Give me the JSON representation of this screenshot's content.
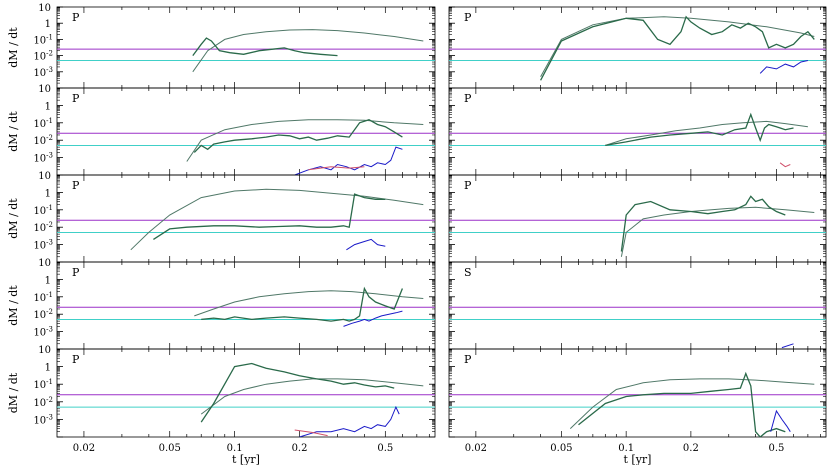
{
  "chart_data": {
    "type": "line",
    "layout": "5 rows x 2 columns",
    "xlabel": "t [yr]",
    "ylabel": "dM / dt",
    "x_scale": "log",
    "y_scale": "log",
    "xlim": [
      0.015,
      0.85
    ],
    "ylim": [
      0.0001,
      10
    ],
    "x_ticks": [
      {
        "value": 0.02,
        "label": "0.02"
      },
      {
        "value": 0.05,
        "label": "0.05"
      },
      {
        "value": 0.1,
        "label": "0.1"
      },
      {
        "value": 0.2,
        "label": "0.2"
      },
      {
        "value": 0.5,
        "label": "0.5"
      }
    ],
    "y_ticks": [
      {
        "value": 10,
        "label": "10"
      },
      {
        "value": 1,
        "label": "1"
      },
      {
        "value": 0.1,
        "label": "10-1"
      },
      {
        "value": 0.01,
        "label": "10-2"
      },
      {
        "value": 0.001,
        "label": "10-3"
      }
    ],
    "reference_lines": [
      {
        "y": 0.025,
        "color": "#9b30c8"
      },
      {
        "y": 0.005,
        "color": "#40d0c8"
      }
    ],
    "colors": {
      "smooth": "#507868",
      "detailed": "#2a6a4a",
      "low": "#1a1ac8",
      "red": "#d0506a"
    },
    "panels": [
      {
        "label": "P",
        "series": [
          {
            "kind": "smooth",
            "x": [
              0.064,
              0.075,
              0.09,
              0.11,
              0.14,
              0.18,
              0.23,
              0.3,
              0.4,
              0.55,
              0.75
            ],
            "y": [
              0.001,
              0.02,
              0.1,
              0.2,
              0.3,
              0.38,
              0.4,
              0.35,
              0.25,
              0.15,
              0.08
            ]
          },
          {
            "kind": "detailed",
            "x": [
              0.064,
              0.07,
              0.074,
              0.078,
              0.085,
              0.095,
              0.11,
              0.13,
              0.15,
              0.17,
              0.19,
              0.21,
              0.25,
              0.3
            ],
            "y": [
              0.01,
              0.05,
              0.12,
              0.08,
              0.02,
              0.015,
              0.012,
              0.02,
              0.025,
              0.03,
              0.02,
              0.015,
              0.012,
              0.01
            ]
          }
        ]
      },
      {
        "label": "P",
        "series": [
          {
            "kind": "smooth",
            "x": [
              0.04,
              0.05,
              0.07,
              0.1,
              0.15,
              0.2,
              0.3,
              0.45,
              0.65,
              0.75
            ],
            "y": [
              0.0005,
              0.1,
              0.8,
              2,
              2.5,
              2,
              1.2,
              0.6,
              0.25,
              0.15
            ]
          },
          {
            "kind": "detailed",
            "x": [
              0.04,
              0.05,
              0.07,
              0.1,
              0.12,
              0.14,
              0.16,
              0.18,
              0.19,
              0.2,
              0.22,
              0.25,
              0.28,
              0.31,
              0.34,
              0.37,
              0.4,
              0.43,
              0.46,
              0.5,
              0.55,
              0.6,
              0.65,
              0.7,
              0.75
            ],
            "y": [
              0.0003,
              0.08,
              0.6,
              2,
              1.5,
              0.1,
              0.05,
              0.3,
              2.5,
              1.2,
              0.5,
              0.2,
              0.3,
              0.8,
              0.5,
              1.0,
              0.6,
              0.3,
              0.03,
              0.05,
              0.03,
              0.05,
              0.15,
              0.3,
              0.1
            ]
          },
          {
            "kind": "low",
            "x": [
              0.42,
              0.45,
              0.5,
              0.55,
              0.6,
              0.65,
              0.7
            ],
            "y": [
              0.0008,
              0.002,
              0.0015,
              0.003,
              0.002,
              0.004,
              0.005
            ]
          }
        ]
      },
      {
        "label": "P",
        "series": [
          {
            "kind": "smooth",
            "x": [
              0.06,
              0.07,
              0.09,
              0.12,
              0.16,
              0.22,
              0.3,
              0.4,
              0.55,
              0.75
            ],
            "y": [
              0.0006,
              0.01,
              0.04,
              0.08,
              0.12,
              0.15,
              0.15,
              0.14,
              0.1,
              0.08
            ]
          },
          {
            "kind": "detailed",
            "x": [
              0.065,
              0.07,
              0.075,
              0.08,
              0.09,
              0.1,
              0.12,
              0.14,
              0.16,
              0.18,
              0.2,
              0.22,
              0.24,
              0.27,
              0.3,
              0.34,
              0.38,
              0.42,
              0.46,
              0.5,
              0.55,
              0.6
            ],
            "y": [
              0.002,
              0.005,
              0.003,
              0.006,
              0.008,
              0.01,
              0.012,
              0.015,
              0.02,
              0.018,
              0.012,
              0.015,
              0.01,
              0.013,
              0.018,
              0.015,
              0.1,
              0.15,
              0.08,
              0.06,
              0.03,
              0.015
            ]
          },
          {
            "kind": "low",
            "x": [
              0.19,
              0.22,
              0.25,
              0.28,
              0.3,
              0.33,
              0.36,
              0.4,
              0.43,
              0.46,
              0.5,
              0.53,
              0.56,
              0.6
            ],
            "y": [
              0.0001,
              0.0002,
              0.0003,
              0.0002,
              0.0004,
              0.0003,
              0.0002,
              0.0004,
              0.0003,
              0.0005,
              0.0004,
              0.0007,
              0.004,
              0.003
            ]
          },
          {
            "kind": "red",
            "x": [
              0.22,
              0.28,
              0.34,
              0.4
            ],
            "y": [
              0.0002,
              0.0003,
              0.00025,
              0.0003
            ]
          }
        ]
      },
      {
        "label": "P",
        "series": [
          {
            "kind": "smooth",
            "x": [
              0.08,
              0.1,
              0.13,
              0.17,
              0.22,
              0.28,
              0.35,
              0.45,
              0.55,
              0.7
            ],
            "y": [
              0.005,
              0.012,
              0.02,
              0.035,
              0.05,
              0.08,
              0.1,
              0.12,
              0.09,
              0.06
            ]
          },
          {
            "kind": "detailed",
            "x": [
              0.08,
              0.1,
              0.13,
              0.16,
              0.2,
              0.24,
              0.28,
              0.32,
              0.36,
              0.38,
              0.4,
              0.42,
              0.44,
              0.46,
              0.5,
              0.55,
              0.6
            ],
            "y": [
              0.005,
              0.008,
              0.015,
              0.02,
              0.025,
              0.03,
              0.02,
              0.04,
              0.05,
              0.3,
              0.05,
              0.01,
              0.05,
              0.08,
              0.06,
              0.04,
              0.05
            ]
          },
          {
            "kind": "red",
            "x": [
              0.52,
              0.55,
              0.58
            ],
            "y": [
              0.0005,
              0.0003,
              0.0004
            ]
          }
        ]
      },
      {
        "label": "P",
        "series": [
          {
            "kind": "smooth",
            "x": [
              0.033,
              0.04,
              0.05,
              0.07,
              0.1,
              0.14,
              0.2,
              0.28,
              0.4,
              0.55,
              0.75
            ],
            "y": [
              0.0005,
              0.005,
              0.05,
              0.5,
              1.2,
              1.5,
              1.3,
              0.9,
              0.6,
              0.35,
              0.2
            ]
          },
          {
            "kind": "detailed",
            "x": [
              0.042,
              0.05,
              0.06,
              0.08,
              0.1,
              0.13,
              0.16,
              0.2,
              0.24,
              0.28,
              0.32,
              0.34,
              0.36,
              0.4,
              0.45,
              0.5
            ],
            "y": [
              0.002,
              0.008,
              0.01,
              0.012,
              0.012,
              0.01,
              0.011,
              0.012,
              0.01,
              0.01,
              0.012,
              0.01,
              0.8,
              0.5,
              0.4,
              0.4
            ]
          },
          {
            "kind": "low",
            "x": [
              0.33,
              0.36,
              0.4,
              0.43,
              0.46,
              0.5
            ],
            "y": [
              0.0005,
              0.001,
              0.0015,
              0.002,
              0.001,
              0.0008
            ]
          }
        ]
      },
      {
        "label": "P",
        "series": [
          {
            "kind": "smooth",
            "x": [
              0.095,
              0.1,
              0.12,
              0.15,
              0.2,
              0.25,
              0.3,
              0.4,
              0.55,
              0.75
            ],
            "y": [
              0.0002,
              0.005,
              0.03,
              0.05,
              0.08,
              0.1,
              0.12,
              0.14,
              0.1,
              0.07
            ]
          },
          {
            "kind": "detailed",
            "x": [
              0.095,
              0.1,
              0.11,
              0.13,
              0.16,
              0.2,
              0.24,
              0.28,
              0.32,
              0.36,
              0.38,
              0.4,
              0.43,
              0.46,
              0.5,
              0.55
            ],
            "y": [
              0.0004,
              0.05,
              0.2,
              0.3,
              0.1,
              0.08,
              0.06,
              0.08,
              0.1,
              0.2,
              0.6,
              0.3,
              0.4,
              0.15,
              0.08,
              0.05
            ]
          }
        ]
      },
      {
        "label": "P",
        "series": [
          {
            "kind": "smooth",
            "x": [
              0.065,
              0.08,
              0.1,
              0.13,
              0.17,
              0.22,
              0.28,
              0.35,
              0.45,
              0.6,
              0.75
            ],
            "y": [
              0.008,
              0.02,
              0.05,
              0.1,
              0.15,
              0.2,
              0.22,
              0.2,
              0.15,
              0.1,
              0.08
            ]
          },
          {
            "kind": "detailed",
            "x": [
              0.07,
              0.08,
              0.09,
              0.1,
              0.12,
              0.14,
              0.17,
              0.2,
              0.24,
              0.28,
              0.32,
              0.34,
              0.36,
              0.38,
              0.4,
              0.42,
              0.45,
              0.5,
              0.55,
              0.6
            ],
            "y": [
              0.005,
              0.006,
              0.005,
              0.007,
              0.005,
              0.006,
              0.007,
              0.006,
              0.005,
              0.004,
              0.005,
              0.004,
              0.005,
              0.008,
              0.3,
              0.1,
              0.05,
              0.03,
              0.02,
              0.3
            ]
          },
          {
            "kind": "low",
            "x": [
              0.32,
              0.35,
              0.38,
              0.4,
              0.42,
              0.45,
              0.48,
              0.52,
              0.56,
              0.6
            ],
            "y": [
              0.002,
              0.003,
              0.004,
              0.005,
              0.004,
              0.006,
              0.008,
              0.01,
              0.012,
              0.015
            ]
          }
        ]
      },
      {
        "label": "S",
        "series": [
          {
            "kind": "low",
            "x": [
              0.53,
              0.6
            ],
            "y": [
              0.00012,
              0.0002
            ]
          }
        ]
      },
      {
        "label": "P",
        "series": [
          {
            "kind": "smooth",
            "x": [
              0.07,
              0.09,
              0.11,
              0.14,
              0.18,
              0.23,
              0.3,
              0.4,
              0.55,
              0.75
            ],
            "y": [
              0.002,
              0.02,
              0.05,
              0.1,
              0.15,
              0.2,
              0.2,
              0.18,
              0.12,
              0.08
            ]
          },
          {
            "kind": "detailed",
            "x": [
              0.07,
              0.08,
              0.1,
              0.12,
              0.14,
              0.17,
              0.2,
              0.24,
              0.28,
              0.32,
              0.36,
              0.4,
              0.45,
              0.5,
              0.55
            ],
            "y": [
              0.0007,
              0.008,
              1.0,
              1.5,
              0.8,
              0.5,
              0.3,
              0.2,
              0.15,
              0.1,
              0.12,
              0.09,
              0.07,
              0.08,
              0.06
            ]
          },
          {
            "kind": "low",
            "x": [
              0.2,
              0.24,
              0.28,
              0.32,
              0.36,
              0.4,
              0.43,
              0.46,
              0.5,
              0.53,
              0.56,
              0.58
            ],
            "y": [
              0.0001,
              0.0002,
              0.0002,
              0.0003,
              0.0002,
              0.0004,
              0.0003,
              0.0005,
              0.0004,
              0.001,
              0.005,
              0.002
            ]
          },
          {
            "kind": "red",
            "x": [
              0.19,
              0.23,
              0.27
            ],
            "y": [
              0.00025,
              0.00018,
              0.00012
            ]
          }
        ]
      },
      {
        "label": "P",
        "series": [
          {
            "kind": "smooth",
            "x": [
              0.055,
              0.07,
              0.09,
              0.12,
              0.16,
              0.22,
              0.3,
              0.4,
              0.55,
              0.75
            ],
            "y": [
              0.0003,
              0.005,
              0.05,
              0.12,
              0.18,
              0.2,
              0.2,
              0.17,
              0.13,
              0.1
            ]
          },
          {
            "kind": "detailed",
            "x": [
              0.06,
              0.08,
              0.1,
              0.12,
              0.15,
              0.2,
              0.25,
              0.3,
              0.34,
              0.36,
              0.38,
              0.4,
              0.42,
              0.45,
              0.5,
              0.55
            ],
            "y": [
              0.0005,
              0.008,
              0.02,
              0.025,
              0.03,
              0.03,
              0.04,
              0.05,
              0.06,
              0.4,
              0.08,
              0.0002,
              0.0001,
              0.0002,
              0.0003,
              0.0002
            ]
          },
          {
            "kind": "low",
            "x": [
              0.47,
              0.5,
              0.53,
              0.56,
              0.58
            ],
            "y": [
              0.0002,
              0.003,
              0.001,
              0.0004,
              0.0002
            ]
          }
        ]
      }
    ]
  }
}
